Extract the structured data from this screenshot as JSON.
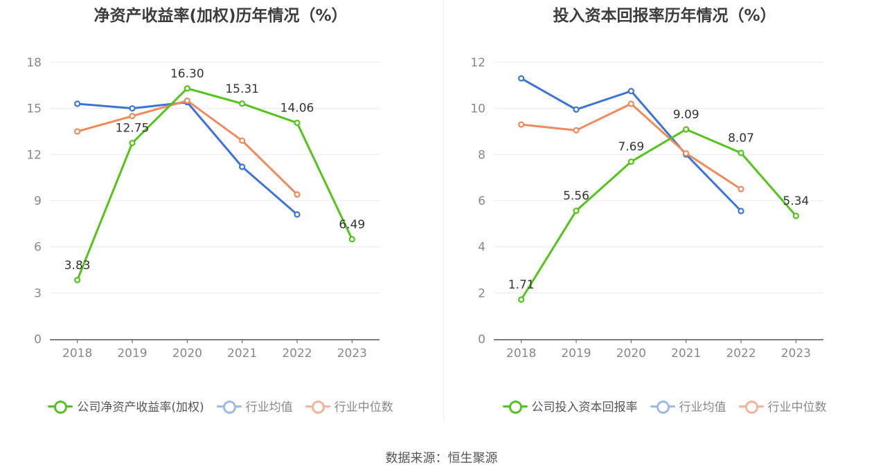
{
  "source_text": "数据来源：恒生聚源",
  "colors": {
    "company": "#52c41a",
    "avg": "#3b74d8",
    "median": "#f08a5a",
    "grid": "#e6e8f0",
    "axis": "#555555",
    "tick": "#888888",
    "label": "#333333"
  },
  "chart_data": [
    {
      "type": "line",
      "title": "净资产收益率(加权)历年情况（%）",
      "xlabel": "",
      "ylabel": "",
      "categories": [
        "2018",
        "2019",
        "2020",
        "2021",
        "2022",
        "2023"
      ],
      "ylim": [
        0,
        18
      ],
      "yticks": [
        "0",
        "3",
        "6",
        "9",
        "12",
        "15",
        "18"
      ],
      "grid": true,
      "legend_position": "bottom",
      "series": [
        {
          "name": "公司净资产收益率(加权)",
          "key": "company",
          "values": [
            3.83,
            12.75,
            16.3,
            15.31,
            14.06,
            6.49
          ],
          "labels": [
            "3.83",
            "12.75",
            "16.30",
            "15.31",
            "14.06",
            "6.49"
          ]
        },
        {
          "name": "行业均值",
          "key": "avg",
          "values": [
            15.3,
            15.0,
            15.4,
            11.2,
            8.1,
            null
          ]
        },
        {
          "name": "行业中位数",
          "key": "median",
          "values": [
            13.5,
            14.5,
            15.5,
            12.9,
            9.4,
            null
          ]
        }
      ]
    },
    {
      "type": "line",
      "title": "投入资本回报率历年情况（%）",
      "xlabel": "",
      "ylabel": "",
      "categories": [
        "2018",
        "2019",
        "2020",
        "2021",
        "2022",
        "2023"
      ],
      "ylim": [
        0,
        12
      ],
      "yticks": [
        "0",
        "2",
        "4",
        "6",
        "8",
        "10",
        "12"
      ],
      "grid": true,
      "legend_position": "bottom",
      "series": [
        {
          "name": "公司投入资本回报率",
          "key": "company",
          "values": [
            1.71,
            5.56,
            7.69,
            9.09,
            8.07,
            5.34
          ],
          "labels": [
            "1.71",
            "5.56",
            "7.69",
            "9.09",
            "8.07",
            "5.34"
          ]
        },
        {
          "name": "行业均值",
          "key": "avg",
          "values": [
            11.3,
            9.95,
            10.75,
            8.0,
            5.55,
            null
          ]
        },
        {
          "name": "行业中位数",
          "key": "median",
          "values": [
            9.3,
            9.05,
            10.2,
            8.05,
            6.5,
            null
          ]
        }
      ]
    }
  ]
}
